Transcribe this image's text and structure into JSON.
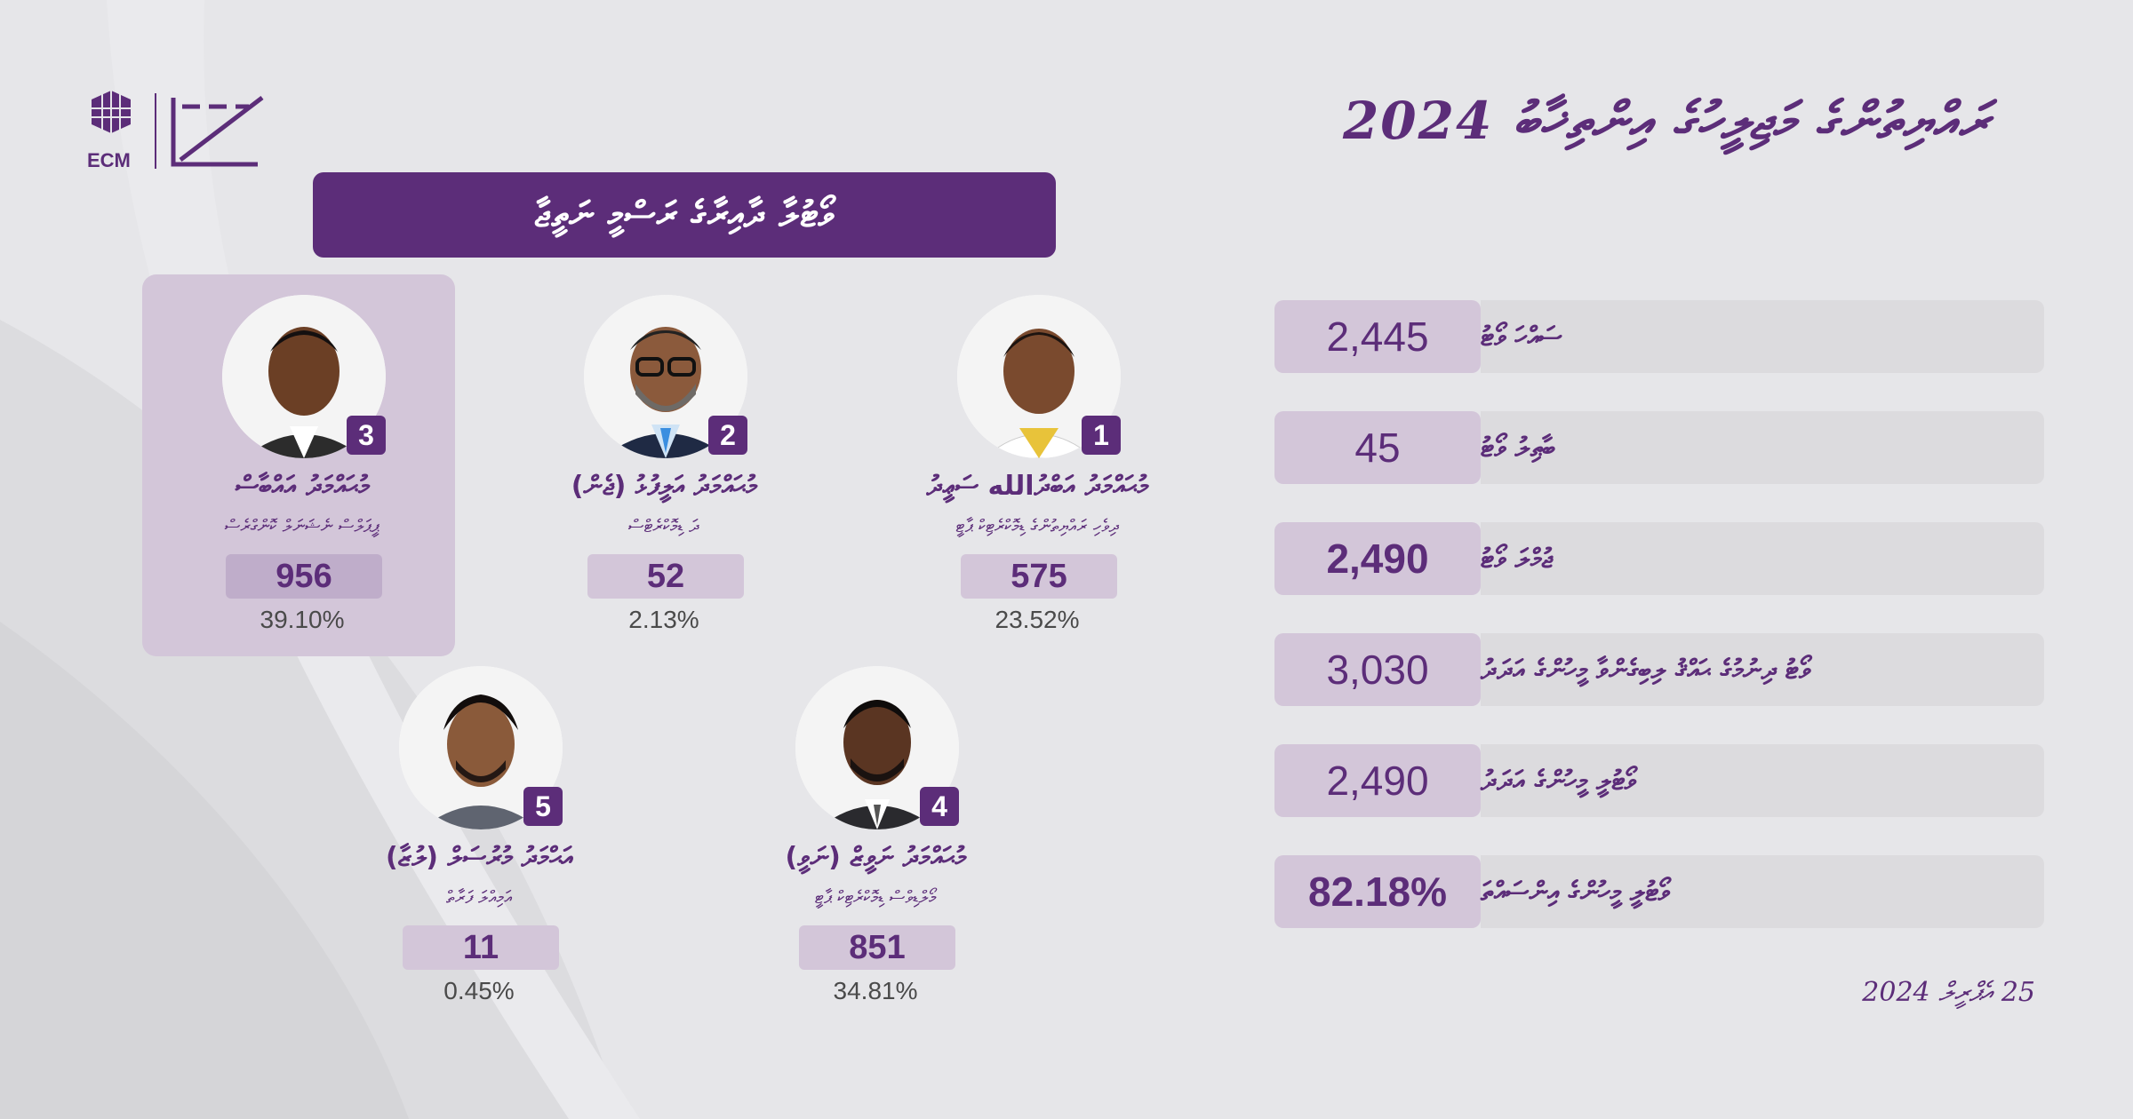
{
  "header": {
    "title": "ރައްޔިތުންގެ މަޖިލީހުގެ އިންތިޚާބު 2024",
    "logo_text": "ECM"
  },
  "banner": {
    "text": "ވޯޓުލާ ދާއިރާގެ ރަސްމީ ނަތީޖާ"
  },
  "candidates": [
    {
      "number": "1",
      "name": "މުޙައްމަދު އަބްދުالله ސަޢީދު",
      "party": "ދިވެހި ރައްޔިތުންގެ ޑިމޮކްރެޓިކް ޕާޓީ",
      "votes": "575",
      "percent": "23.52%"
    },
    {
      "number": "2",
      "name": "މުޙައްމަދު އަލީފުޅު (ޖެން)",
      "party": "ދަ ޑިމޮކްރެޓްސް",
      "votes": "52",
      "percent": "2.13%"
    },
    {
      "number": "3",
      "name": "މުޙައްމަދު އައްބާސް",
      "party": "ޕީޕަލްސް ނެޝަނަލް ކޮންގްރެސް",
      "votes": "956",
      "percent": "39.10%",
      "winner": true
    },
    {
      "number": "4",
      "name": "މުޙައްމަދު ނަވީޒް (ނަވީ)",
      "party": "މޯލްޑިވްސް ޑިމޮކްރެޓިކް ޕާޓީ",
      "votes": "851",
      "percent": "34.81%"
    },
    {
      "number": "5",
      "name": "އަޙްމަދު މުރުސަލް (ލުޒާ)",
      "party": "އަމިއްލަ ފަރާތް",
      "votes": "11",
      "percent": "0.45%"
    }
  ],
  "stats": [
    {
      "label": "ސައްހަ ވޯޓު",
      "value": "2,445",
      "bold": false
    },
    {
      "label": "ބާޠިލު ވޯޓު",
      "value": "45",
      "bold": false
    },
    {
      "label": "ޖުމްލަ ވޯޓު",
      "value": "2,490",
      "bold": true
    },
    {
      "label": "ވޯޓު ދިނުމުގެ ޙައްޤު ލިބިގެންވާ މީހުންގެ އަދަދު",
      "value": "3,030",
      "bold": false
    },
    {
      "label": "ވޯޓުލީ މީހުންގެ އަދަދު",
      "value": "2,490",
      "bold": false
    },
    {
      "label": "ވޯޓުލީ މީހުންގެ އިންސައްތަ",
      "value": "82.18%",
      "bold": true
    }
  ],
  "date": "25 އެޕްރީލް 2024",
  "colors": {
    "accent": "#5c2d79",
    "light_accent": "#d3c6d9",
    "background": "#e6e6e9"
  }
}
